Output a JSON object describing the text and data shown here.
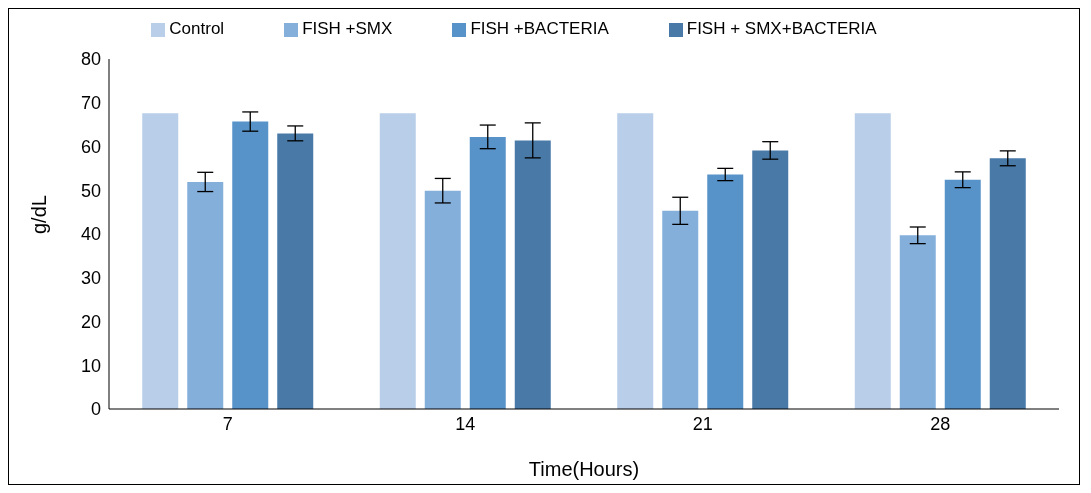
{
  "chart_data": {
    "type": "bar",
    "xlabel": "Time(Hours)",
    "ylabel": "g/dL",
    "categories": [
      "7",
      "14",
      "21",
      "28"
    ],
    "series": [
      {
        "name": "Control",
        "color": "#b9cee8",
        "values": [
          67.6,
          67.6,
          67.6,
          67.6
        ],
        "errors": [
          0,
          0,
          0,
          0
        ]
      },
      {
        "name": "FISH +SMX",
        "color": "#85afdb",
        "values": [
          51.9,
          49.9,
          45.3,
          39.7
        ],
        "errors": [
          2.2,
          2.8,
          3.1,
          1.9
        ]
      },
      {
        "name": "FISH +BACTERIA",
        "color": "#5792c8",
        "values": [
          65.7,
          62.2,
          53.6,
          52.4
        ],
        "errors": [
          2.2,
          2.7,
          1.4,
          1.8
        ]
      },
      {
        "name": "FISH + SMX+BACTERIA",
        "color": "#4879a7",
        "values": [
          63.0,
          61.4,
          59.1,
          57.3
        ],
        "errors": [
          1.7,
          4.0,
          2.0,
          1.7
        ]
      }
    ],
    "ylim": [
      0,
      80
    ],
    "yticks": [
      0,
      10,
      20,
      30,
      40,
      50,
      60,
      70,
      80
    ],
    "grid": false,
    "legend": "top"
  }
}
